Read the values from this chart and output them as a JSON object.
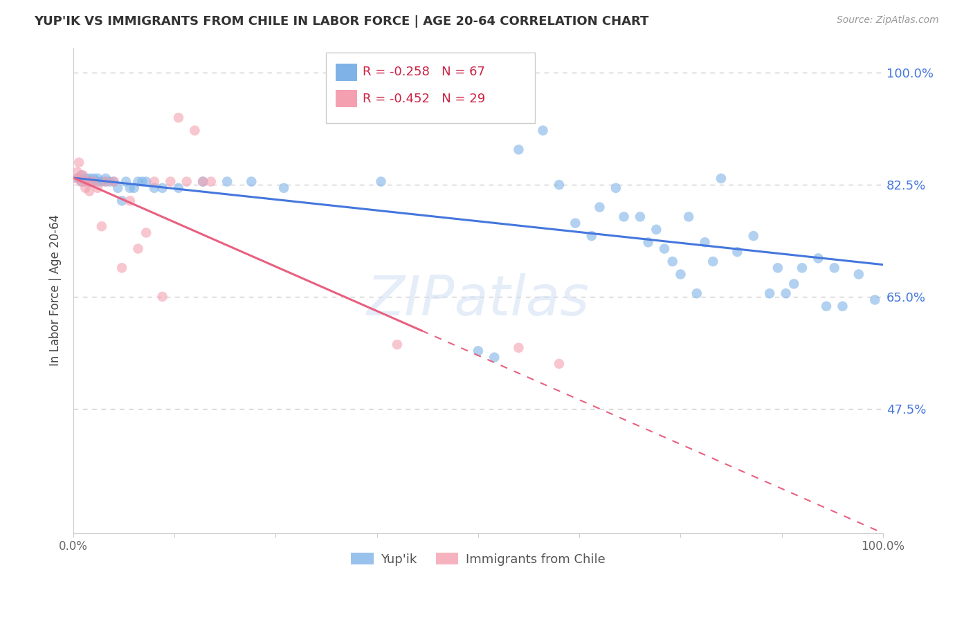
{
  "title": "YUP'IK VS IMMIGRANTS FROM CHILE IN LABOR FORCE | AGE 20-64 CORRELATION CHART",
  "source": "Source: ZipAtlas.com",
  "ylabel": "In Labor Force | Age 20-64",
  "xlim": [
    0.0,
    1.0
  ],
  "ylim": [
    0.28,
    1.04
  ],
  "ytick_labels": [
    "100.0%",
    "82.5%",
    "65.0%",
    "47.5%"
  ],
  "ytick_values": [
    1.0,
    0.825,
    0.65,
    0.475
  ],
  "background_color": "#ffffff",
  "legend_r1": "R = -0.258",
  "legend_n1": "N = 67",
  "legend_r2": "R = -0.452",
  "legend_n2": "N = 29",
  "blue_color": "#7fb3e8",
  "pink_color": "#f4a0b0",
  "trend_blue": "#4477dd",
  "trend_pink": "#e86080",
  "blue_scatter_x": [
    0.005,
    0.01,
    0.01,
    0.015,
    0.015,
    0.02,
    0.02,
    0.02,
    0.025,
    0.025,
    0.03,
    0.03,
    0.035,
    0.04,
    0.04,
    0.045,
    0.05,
    0.055,
    0.06,
    0.065,
    0.07,
    0.075,
    0.08,
    0.085,
    0.09,
    0.1,
    0.11,
    0.13,
    0.16,
    0.19,
    0.22,
    0.26,
    0.38,
    0.5,
    0.52,
    0.55,
    0.58,
    0.6,
    0.62,
    0.64,
    0.65,
    0.67,
    0.68,
    0.7,
    0.71,
    0.72,
    0.73,
    0.74,
    0.75,
    0.76,
    0.77,
    0.78,
    0.79,
    0.8,
    0.82,
    0.84,
    0.86,
    0.87,
    0.88,
    0.89,
    0.9,
    0.92,
    0.93,
    0.94,
    0.95,
    0.97,
    0.99
  ],
  "blue_scatter_y": [
    0.835,
    0.83,
    0.84,
    0.835,
    0.83,
    0.835,
    0.83,
    0.83,
    0.835,
    0.83,
    0.83,
    0.835,
    0.83,
    0.83,
    0.835,
    0.83,
    0.83,
    0.82,
    0.8,
    0.83,
    0.82,
    0.82,
    0.83,
    0.83,
    0.83,
    0.82,
    0.82,
    0.82,
    0.83,
    0.83,
    0.83,
    0.82,
    0.83,
    0.565,
    0.555,
    0.88,
    0.91,
    0.825,
    0.765,
    0.745,
    0.79,
    0.82,
    0.775,
    0.775,
    0.735,
    0.755,
    0.725,
    0.705,
    0.685,
    0.775,
    0.655,
    0.735,
    0.705,
    0.835,
    0.72,
    0.745,
    0.655,
    0.695,
    0.655,
    0.67,
    0.695,
    0.71,
    0.635,
    0.695,
    0.635,
    0.685,
    0.645
  ],
  "pink_scatter_x": [
    0.005,
    0.005,
    0.007,
    0.01,
    0.012,
    0.015,
    0.015,
    0.02,
    0.02,
    0.025,
    0.03,
    0.035,
    0.04,
    0.05,
    0.06,
    0.07,
    0.08,
    0.09,
    0.1,
    0.11,
    0.12,
    0.13,
    0.14,
    0.15,
    0.16,
    0.17,
    0.4,
    0.55,
    0.6
  ],
  "pink_scatter_y": [
    0.835,
    0.845,
    0.86,
    0.83,
    0.84,
    0.83,
    0.82,
    0.83,
    0.815,
    0.83,
    0.82,
    0.76,
    0.83,
    0.83,
    0.695,
    0.8,
    0.725,
    0.75,
    0.83,
    0.65,
    0.83,
    0.93,
    0.83,
    0.91,
    0.83,
    0.83,
    0.575,
    0.57,
    0.545
  ],
  "blue_trend_start_x": 0.0,
  "blue_trend_start_y": 0.836,
  "blue_trend_end_x": 1.0,
  "blue_trend_end_y": 0.7,
  "pink_trend_start_x": 0.0,
  "pink_trend_start_y": 0.836,
  "pink_trend_solid_end_x": 0.43,
  "pink_trend_end_x": 1.0,
  "pink_trend_end_y": 0.28
}
